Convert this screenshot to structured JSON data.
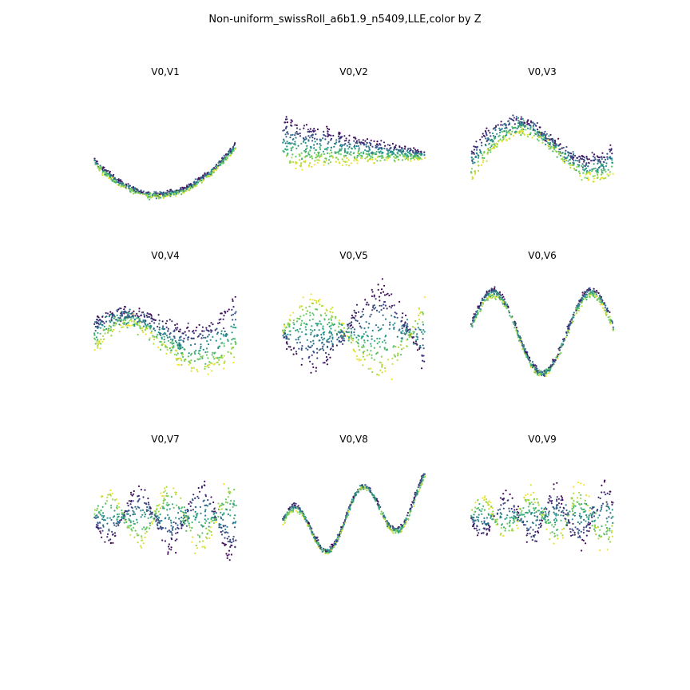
{
  "figure": {
    "title": "Non-uniform_swissRoll_a6b1.9_n5409,LLE,color by Z"
  },
  "chart_data": {
    "type": "scatter",
    "title": "Non-uniform_swissRoll_a6b1.9_n5409,LLE,color by Z",
    "axes_visible": false,
    "colormap": "viridis",
    "color_variable": "Z",
    "colormap_stops": [
      "#440154",
      "#3b528b",
      "#21918c",
      "#5ec962",
      "#fde725"
    ],
    "grid": "3x3",
    "panels": [
      {
        "title": "V0,V1",
        "x_range": [
          -1,
          1
        ],
        "y_range": [
          -0.7,
          0.55
        ],
        "shape": {
          "kind": "parabola",
          "center": 0.45,
          "amp": 0.78,
          "base": -0.55,
          "spread": 0.03,
          "noise": 0.012
        }
      },
      {
        "title": "V0,V2",
        "x_range": [
          -1,
          1
        ],
        "y_range": [
          -1.0,
          1.0
        ],
        "shape": {
          "kind": "fan",
          "spread_left": 0.9,
          "spread_right": 0.12,
          "slope": -0.1,
          "noise": 0.05
        }
      },
      {
        "title": "V0,V3",
        "x_range": [
          -1,
          1
        ],
        "y_range": [
          -1.0,
          1.0
        ],
        "shape": {
          "kind": "wave",
          "freq": 0.85,
          "phase": 0.0,
          "amp": 0.55,
          "trend": 0.25,
          "spread": 0.48,
          "node": 0.52,
          "noise": 0.05
        }
      },
      {
        "title": "V0,V4",
        "x_range": [
          -1,
          1
        ],
        "y_range": [
          -1.0,
          1.0
        ],
        "shape": {
          "kind": "wave",
          "freq": 0.95,
          "phase": 0.3,
          "amp": 0.35,
          "trend": 0.1,
          "spread": 0.7,
          "node": 0.26,
          "noise": 0.06
        }
      },
      {
        "title": "V0,V5",
        "x_range": [
          -1,
          1
        ],
        "y_range": [
          -1.0,
          1.0
        ],
        "shape": {
          "kind": "twist",
          "cycles": 1.1,
          "phase": 0.1,
          "amp": 0.7,
          "noise": 0.06
        }
      },
      {
        "title": "V0,V6",
        "x_range": [
          -1,
          1
        ],
        "y_range": [
          -1.0,
          1.0
        ],
        "shape": {
          "kind": "wave",
          "freq": 1.45,
          "phase": 0.15,
          "amp": 0.75,
          "trend": 0.0,
          "spread": 0.14,
          "node": 0.5,
          "noise": 0.025
        }
      },
      {
        "title": "V0,V7",
        "x_range": [
          -1,
          1
        ],
        "y_range": [
          -1.0,
          1.0
        ],
        "shape": {
          "kind": "twist",
          "cycles": 2.3,
          "phase": 0.2,
          "amp": 0.55,
          "noise": 0.05
        }
      },
      {
        "title": "V0,V8",
        "x_range": [
          -1,
          1
        ],
        "y_range": [
          -1.0,
          1.0
        ],
        "shape": {
          "kind": "wave",
          "freq": 2.05,
          "phase": 0.6,
          "amp": 0.5,
          "trend": 0.35,
          "spread": 0.1,
          "node": 0.5,
          "noise": 0.02
        }
      },
      {
        "title": "V0,V9",
        "x_range": [
          -1,
          1
        ],
        "y_range": [
          -1.0,
          1.0
        ],
        "shape": {
          "kind": "twist",
          "cycles": 2.9,
          "phase": 0.2,
          "amp": 0.45,
          "noise": 0.06
        }
      }
    ]
  }
}
